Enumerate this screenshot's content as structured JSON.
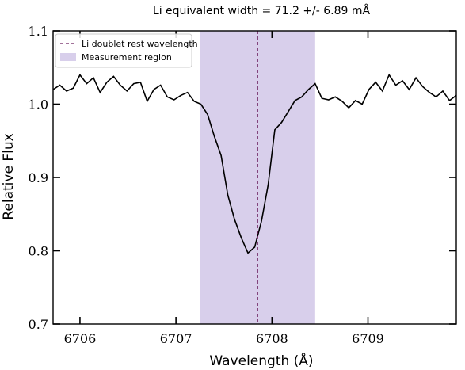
{
  "chart_data": {
    "type": "line",
    "title": "Li equivalent width = 71.2 +/- 6.89 mÅ",
    "xlabel": "Wavelength (Å)",
    "ylabel": "Relative Flux",
    "xlim": [
      6705.72,
      6709.92
    ],
    "ylim": [
      0.7,
      1.1
    ],
    "x_ticks": [
      6706,
      6707,
      6708,
      6709
    ],
    "x_tick_labels": [
      "6706",
      "6707",
      "6708",
      "6709"
    ],
    "y_ticks": [
      0.7,
      0.8,
      0.9,
      1.0,
      1.1
    ],
    "y_tick_labels": [
      "0.7",
      "0.8",
      "0.9",
      "1.0",
      "1.1"
    ],
    "grid": false,
    "legend_position": "top-left",
    "legend": [
      {
        "label": "Li doublet rest wavelength",
        "style": "dashed-line",
        "color": "#6b1f5e"
      },
      {
        "label": "Measurement region",
        "style": "patch",
        "color": "#d8cfeb"
      }
    ],
    "measurement_region": [
      6707.25,
      6708.45
    ],
    "rest_wavelength": 6707.85,
    "series": [
      {
        "color": "#000000",
        "x": [
          6705.72,
          6705.79,
          6705.86,
          6705.93,
          6706.0,
          6706.07,
          6706.14,
          6706.21,
          6706.28,
          6706.35,
          6706.42,
          6706.49,
          6706.56,
          6706.63,
          6706.7,
          6706.77,
          6706.84,
          6706.91,
          6706.98,
          6707.05,
          6707.12,
          6707.19,
          6707.26,
          6707.33,
          6707.4,
          6707.47,
          6707.54,
          6707.61,
          6707.68,
          6707.75,
          6707.82,
          6707.89,
          6707.96,
          6708.03,
          6708.1,
          6708.17,
          6708.24,
          6708.31,
          6708.38,
          6708.45,
          6708.52,
          6708.59,
          6708.66,
          6708.73,
          6708.8,
          6708.87,
          6708.94,
          6709.01,
          6709.08,
          6709.15,
          6709.22,
          6709.29,
          6709.36,
          6709.43,
          6709.5,
          6709.57,
          6709.64,
          6709.71,
          6709.78,
          6709.85,
          6709.92
        ],
        "values": [
          1.02,
          1.026,
          1.018,
          1.022,
          1.04,
          1.028,
          1.036,
          1.016,
          1.03,
          1.038,
          1.026,
          1.018,
          1.028,
          1.03,
          1.004,
          1.02,
          1.026,
          1.01,
          1.006,
          1.012,
          1.016,
          1.004,
          1.0,
          0.986,
          0.956,
          0.93,
          0.876,
          0.843,
          0.818,
          0.797,
          0.805,
          0.84,
          0.89,
          0.965,
          0.975,
          0.99,
          1.005,
          1.01,
          1.02,
          1.028,
          1.008,
          1.006,
          1.01,
          1.004,
          0.995,
          1.005,
          1.0,
          1.02,
          1.03,
          1.018,
          1.04,
          1.026,
          1.032,
          1.02,
          1.036,
          1.024,
          1.016,
          1.01,
          1.018,
          1.005,
          1.012
        ]
      }
    ]
  }
}
